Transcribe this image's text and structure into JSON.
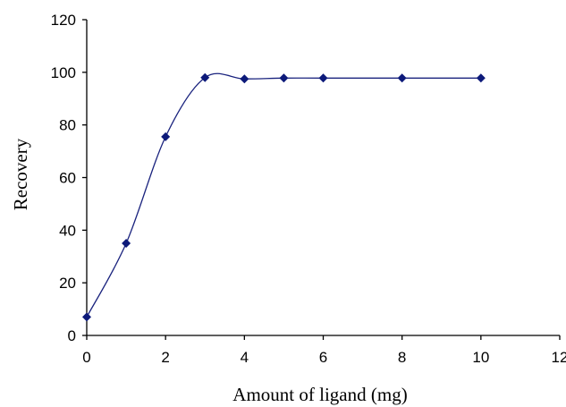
{
  "chart_data": {
    "type": "line",
    "title": "",
    "xlabel": "Amount of ligand (mg)",
    "ylabel": "Recovery",
    "xlim": [
      0,
      12
    ],
    "ylim": [
      0,
      120
    ],
    "x_ticks": [
      "0",
      "2",
      "4",
      "6",
      "8",
      "10",
      "12"
    ],
    "y_ticks": [
      "0",
      "20",
      "40",
      "60",
      "80",
      "100",
      "120"
    ],
    "grid": false,
    "legend": "none",
    "series": [
      {
        "color": "#1a237e",
        "marker": "diamond",
        "smooth": true,
        "points": [
          {
            "x": 0,
            "y": 7
          },
          {
            "x": 1,
            "y": 35
          },
          {
            "x": 2,
            "y": 75.5
          },
          {
            "x": 3,
            "y": 98
          },
          {
            "x": 4,
            "y": 97.5
          },
          {
            "x": 5,
            "y": 97.8
          },
          {
            "x": 6,
            "y": 97.8
          },
          {
            "x": 8,
            "y": 97.8
          },
          {
            "x": 10,
            "y": 97.8
          }
        ]
      }
    ]
  }
}
